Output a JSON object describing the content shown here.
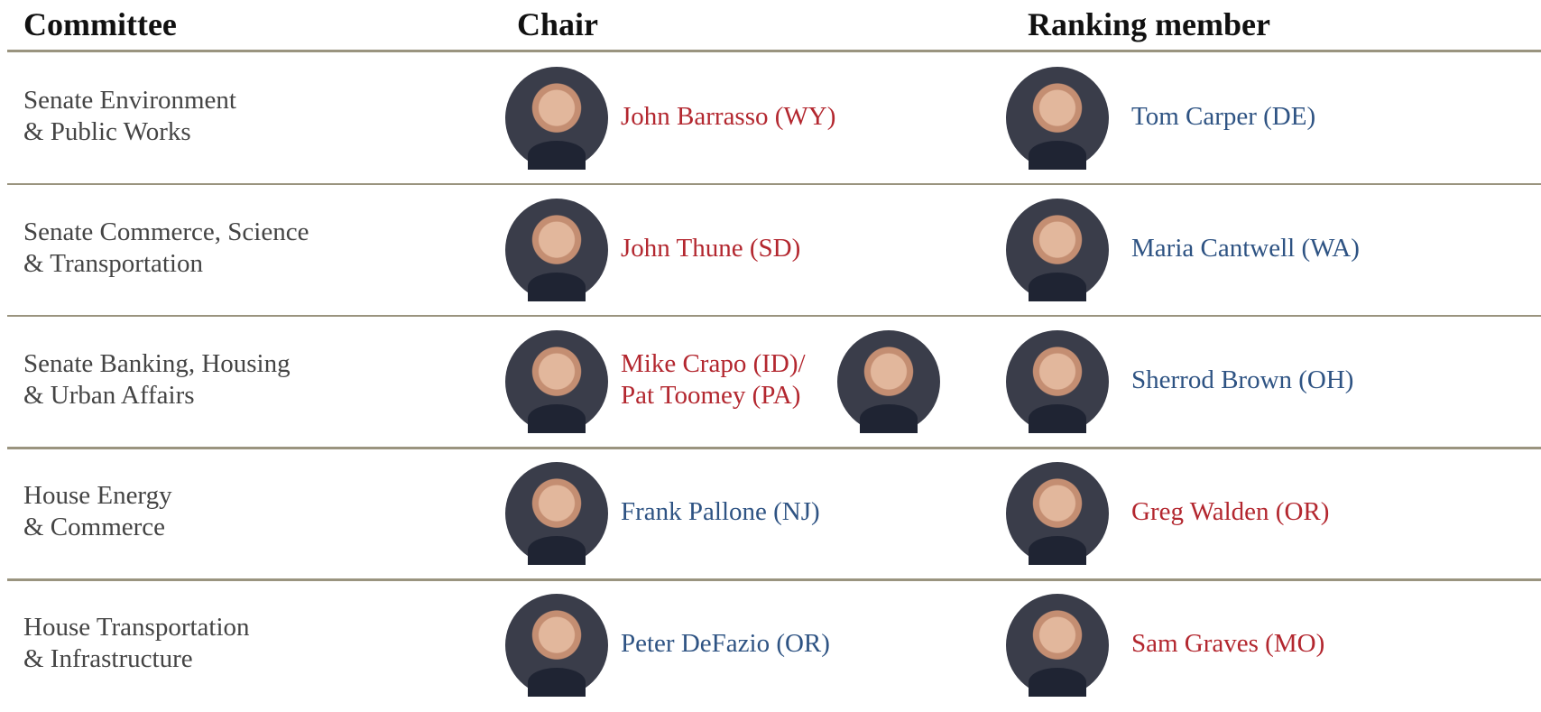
{
  "header": {
    "columns": [
      "Committee",
      "Chair",
      "Ranking member"
    ]
  },
  "table": {
    "rows": [
      {
        "committee": [
          "Senate Environment",
          "& Public Works"
        ],
        "chair": {
          "lines": [
            "John Barrasso (WY)"
          ],
          "color": "#b3272f",
          "photos": 1
        },
        "ranking": {
          "lines": [
            "Tom Carper (DE)"
          ],
          "color": "#2e5383",
          "photos": 1
        }
      },
      {
        "committee": [
          "Senate Commerce, Science",
          "& Transportation"
        ],
        "chair": {
          "lines": [
            "John Thune (SD)"
          ],
          "color": "#b3272f",
          "photos": 1
        },
        "ranking": {
          "lines": [
            "Maria Cantwell (WA)"
          ],
          "color": "#2e5383",
          "photos": 1
        }
      },
      {
        "committee": [
          "Senate Banking, Housing",
          "& Urban Affairs"
        ],
        "chair": {
          "lines": [
            "Mike Crapo (ID)/",
            "Pat Toomey (PA)"
          ],
          "color": "#b3272f",
          "photos": 2
        },
        "ranking": {
          "lines": [
            "Sherrod Brown (OH)"
          ],
          "color": "#2e5383",
          "photos": 1
        }
      },
      {
        "committee": [
          "House Energy",
          "& Commerce"
        ],
        "chair": {
          "lines": [
            "Frank Pallone (NJ)"
          ],
          "color": "#2e5383",
          "photos": 1
        },
        "ranking": {
          "lines": [
            "Greg Walden (OR)"
          ],
          "color": "#b3272f",
          "photos": 1
        }
      },
      {
        "committee": [
          "House Transportation",
          "& Infrastructure"
        ],
        "chair": {
          "lines": [
            "Peter DeFazio (OR)"
          ],
          "color": "#2e5383",
          "photos": 1
        },
        "ranking": {
          "lines": [
            "Sam Graves (MO)"
          ],
          "color": "#b3272f",
          "photos": 1
        }
      }
    ]
  }
}
